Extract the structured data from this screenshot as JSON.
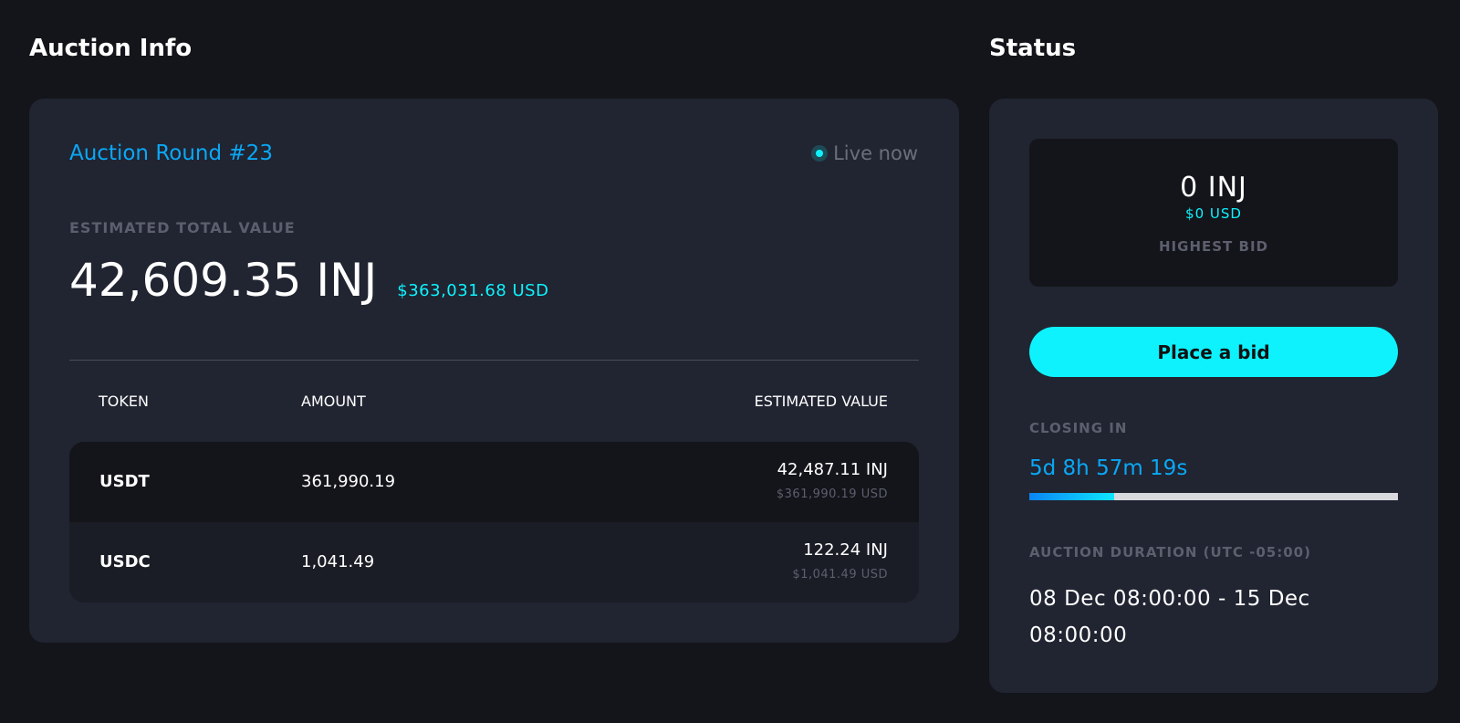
{
  "auction_info": {
    "title": "Auction Info",
    "round": "Auction Round #23",
    "live": "Live now",
    "estimated_label": "ESTIMATED TOTAL VALUE",
    "total_inj": "42,609.35 INJ",
    "total_usd": "$363,031.68 USD",
    "columns": [
      "TOKEN",
      "AMOUNT",
      "ESTIMATED VALUE"
    ],
    "rows": [
      {
        "token": "USDT",
        "amount": "361,990.19",
        "inj": "42,487.11 INJ",
        "usd": "$361,990.19 USD"
      },
      {
        "token": "USDC",
        "amount": "1,041.49",
        "inj": "122.24 INJ",
        "usd": "$1,041.49 USD"
      }
    ]
  },
  "status": {
    "title": "Status",
    "bid_inj": "0 INJ",
    "bid_usd": "$0 USD",
    "bid_label": "HIGHEST BID",
    "button": "Place a bid",
    "closing_label": "CLOSING IN",
    "countdown": "5d 8h 57m 19s",
    "progress_percent": 23,
    "duration_label": "AUCTION DURATION (UTC -05:00)",
    "duration": "08 Dec 08:00:00 - 15 Dec 08:00:00"
  },
  "colors": {
    "accent": "#0ef2fe",
    "blue": "#0aa8f5",
    "bg": "#14151a",
    "card": "#212431"
  }
}
